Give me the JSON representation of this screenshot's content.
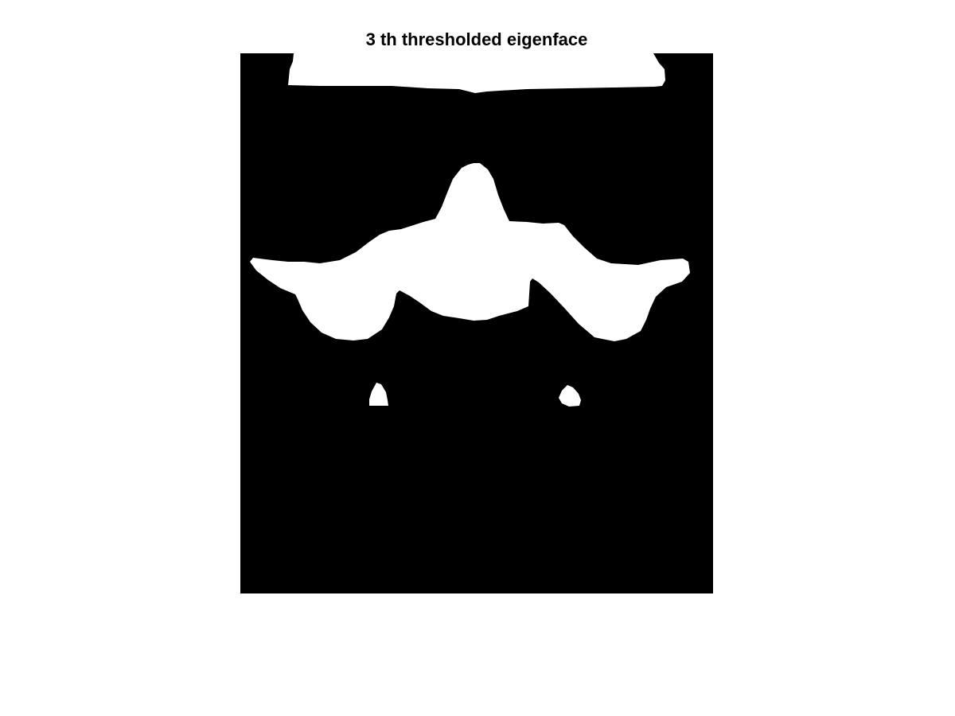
{
  "figure": {
    "title": "3 th thresholded eigenface",
    "background_color": "#000000",
    "foreground_color": "#ffffff",
    "page_color": "#ffffff"
  }
}
